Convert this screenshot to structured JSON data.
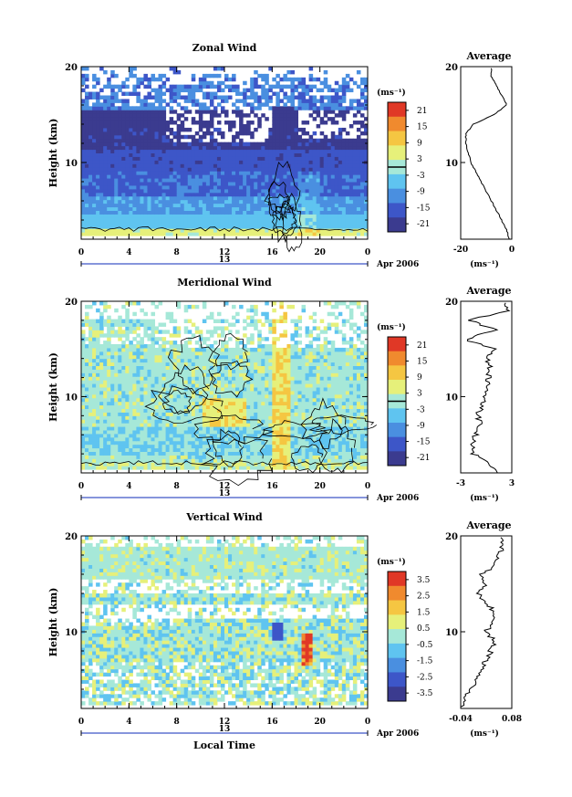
{
  "colors": {
    "colormap": [
      "#3b3b8f",
      "#3d56c8",
      "#4a8fe0",
      "#5fc4f0",
      "#a6e8d8",
      "#e6f07a",
      "#f5c642",
      "#f08a2e",
      "#e03826"
    ],
    "contour": "#000000",
    "axis": "#000000",
    "background": "#ffffff"
  },
  "common": {
    "ylabel": "Height (km)",
    "x_ticks": [
      "0",
      "4",
      "8",
      "12",
      "16",
      "20",
      "0"
    ],
    "day_label": "13",
    "date_label": "Apr 2006",
    "unit_label": "(ms⁻¹)",
    "avg_title": "Average",
    "avg_unit": "(ms⁻¹)",
    "y_ticks": [
      "20",
      "10"
    ],
    "xlabel_bottom": "Local Time"
  },
  "chart_data": [
    {
      "type": "heatmap",
      "title": "Zonal Wind",
      "x_range_hours": [
        0,
        24
      ],
      "y_range_km": [
        2,
        20
      ],
      "colorbar_ticks": [
        "21",
        "15",
        "9",
        "3",
        "-3",
        "-9",
        "-15",
        "-21"
      ],
      "colorbar_range": [
        -24,
        24
      ],
      "contour_level": 0,
      "profile": {
        "title": "Average",
        "xlim": [
          -20,
          0
        ],
        "x_ticks": [
          "-20",
          "0"
        ],
        "heights": [
          2,
          3,
          4,
          5,
          6,
          7,
          8,
          9,
          10,
          11,
          12,
          13,
          14,
          15,
          16,
          17,
          18,
          19,
          20
        ],
        "values": [
          -1,
          -2,
          -4,
          -6,
          -8,
          -10,
          -12,
          -14,
          -16,
          -17,
          -18,
          -18,
          -15,
          -7,
          -2,
          -4,
          -6,
          -8,
          -8
        ]
      }
    },
    {
      "type": "heatmap",
      "title": "Meridional Wind",
      "x_range_hours": [
        0,
        24
      ],
      "y_range_km": [
        2,
        20
      ],
      "colorbar_ticks": [
        "21",
        "15",
        "9",
        "3",
        "-3",
        "-9",
        "-15",
        "-21"
      ],
      "colorbar_range": [
        -24,
        24
      ],
      "contour_level": 0,
      "profile": {
        "title": "Average",
        "xlim": [
          -3,
          3
        ],
        "x_ticks": [
          "-3",
          "3"
        ],
        "heights": [
          2,
          3,
          4,
          5,
          6,
          7,
          8,
          9,
          10,
          11,
          12,
          13,
          14,
          15,
          16,
          17,
          18,
          19,
          20
        ],
        "values": [
          1.5,
          0.5,
          -1.5,
          -1.8,
          -1.2,
          -0.8,
          -1.0,
          -0.5,
          -0.3,
          0.0,
          0.3,
          0.4,
          0.2,
          0.8,
          -2.5,
          1.0,
          -2.0,
          2.5,
          2.0
        ]
      }
    },
    {
      "type": "heatmap",
      "title": "Vertical Wind",
      "xlabel": "Local Time",
      "x_range_hours": [
        0,
        24
      ],
      "y_range_km": [
        2,
        20
      ],
      "colorbar_ticks": [
        "3.5",
        "2.5",
        "1.5",
        "0.5",
        "-0.5",
        "-1.5",
        "-2.5",
        "-3.5"
      ],
      "colorbar_range": [
        -4,
        4
      ],
      "profile": {
        "title": "Average",
        "xlim": [
          -0.04,
          0.08
        ],
        "x_ticks": [
          "-0.04",
          "0.08"
        ],
        "heights": [
          2,
          3,
          4,
          5,
          6,
          7,
          8,
          9,
          10,
          11,
          12,
          13,
          14,
          15,
          16,
          17,
          18,
          19,
          20
        ],
        "values": [
          -0.04,
          -0.03,
          -0.02,
          0.0,
          0.01,
          0.02,
          0.03,
          0.04,
          0.02,
          0.03,
          0.04,
          0.02,
          0.0,
          0.02,
          0.01,
          0.04,
          0.05,
          0.06,
          0.05
        ]
      }
    }
  ]
}
